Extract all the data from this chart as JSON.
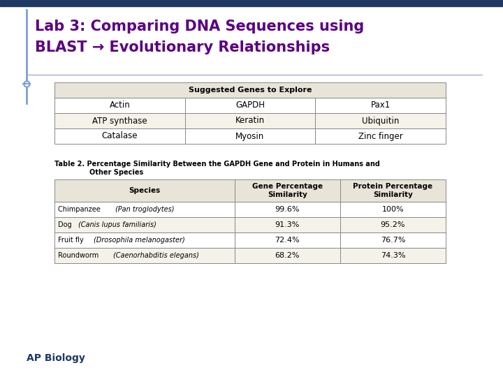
{
  "title_line1": "Lab 3: Comparing DNA Sequences using",
  "title_line2": "BLAST → Evolutionary Relationships",
  "title_color": "#5B0080",
  "title_fontsize": 15,
  "bg_color": "#FFFFFF",
  "top_bar_color": "#1F3864",
  "left_bar_color": "#7B9FD4",
  "ap_biology_text": "AP Biology",
  "ap_biology_color": "#1F3864",
  "ap_biology_fontsize": 10,
  "table1_header": "Suggested Genes to Explore",
  "table1_header_bg": "#E8E4D8",
  "table1_data": [
    [
      "Actin",
      "GAPDH",
      "Pax1"
    ],
    [
      "ATP synthase",
      "Keratin",
      "Ubiquitin"
    ],
    [
      "Catalase",
      "Myosin",
      "Zinc finger"
    ]
  ],
  "table1_row_bg": [
    "#FFFFFF",
    "#F5F2EA",
    "#FFFFFF"
  ],
  "table2_caption_line1": "Table 2. Percentage Similarity Between the GAPDH Gene and Protein in Humans and",
  "table2_caption_line2": "Other Species",
  "table2_headers": [
    "Species",
    "Gene Percentage\nSimilarity",
    "Protein Percentage\nSimilarity"
  ],
  "table2_header_bg": "#E8E4D8",
  "table2_data": [
    [
      "Chimpanzee",
      "Pan troglodytes",
      "99.6%",
      "100%"
    ],
    [
      "Dog",
      "Canis lupus familiaris",
      "91.3%",
      "95.2%"
    ],
    [
      "Fruit fly",
      "Drosophila melanogaster",
      "72.4%",
      "76.7%"
    ],
    [
      "Roundworm",
      "Caenorhabditis elegans",
      "68.2%",
      "74.3%"
    ]
  ],
  "table2_row_bg": [
    "#FFFFFF",
    "#F5F2EA",
    "#FFFFFF",
    "#F5F2EA"
  ],
  "table_border_color": "#888888",
  "table_text_color": "#000000",
  "table_header_text_color": "#000000"
}
